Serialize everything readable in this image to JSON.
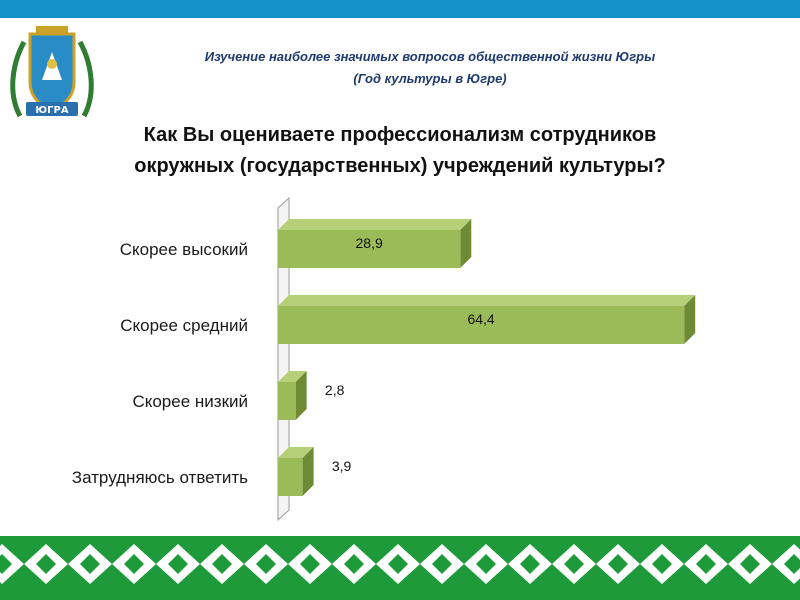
{
  "header": {
    "line1": "Изучение наиболее значимых вопросов общественной жизни Югры",
    "line2": "(Год культуры  в Югре)"
  },
  "question": {
    "line1": "Как Вы оцениваете профессионализм  сотрудников",
    "line2": "окружных (государственных) учреждений культуры?"
  },
  "emblem": {
    "label": "ЮГРА"
  },
  "colors": {
    "top_bar": "#1593c9",
    "bar_front": "#9bbb59",
    "bar_top": "#b6d07a",
    "bar_side": "#6f8a35",
    "ornament": "#1f9a3a",
    "title": "#1f3a6d"
  },
  "chart_data": {
    "type": "bar",
    "orientation": "horizontal",
    "style": "3d",
    "categories": [
      "Скорее высокий",
      "Скорее средний",
      "Скорее низкий",
      "Затрудняюсь ответить"
    ],
    "values": [
      28.9,
      64.4,
      2.8,
      3.9
    ],
    "value_labels": [
      "28,9",
      "64,4",
      "2,8",
      "3,9"
    ],
    "xlim": [
      0,
      65
    ],
    "grid": false,
    "legend": "none"
  }
}
